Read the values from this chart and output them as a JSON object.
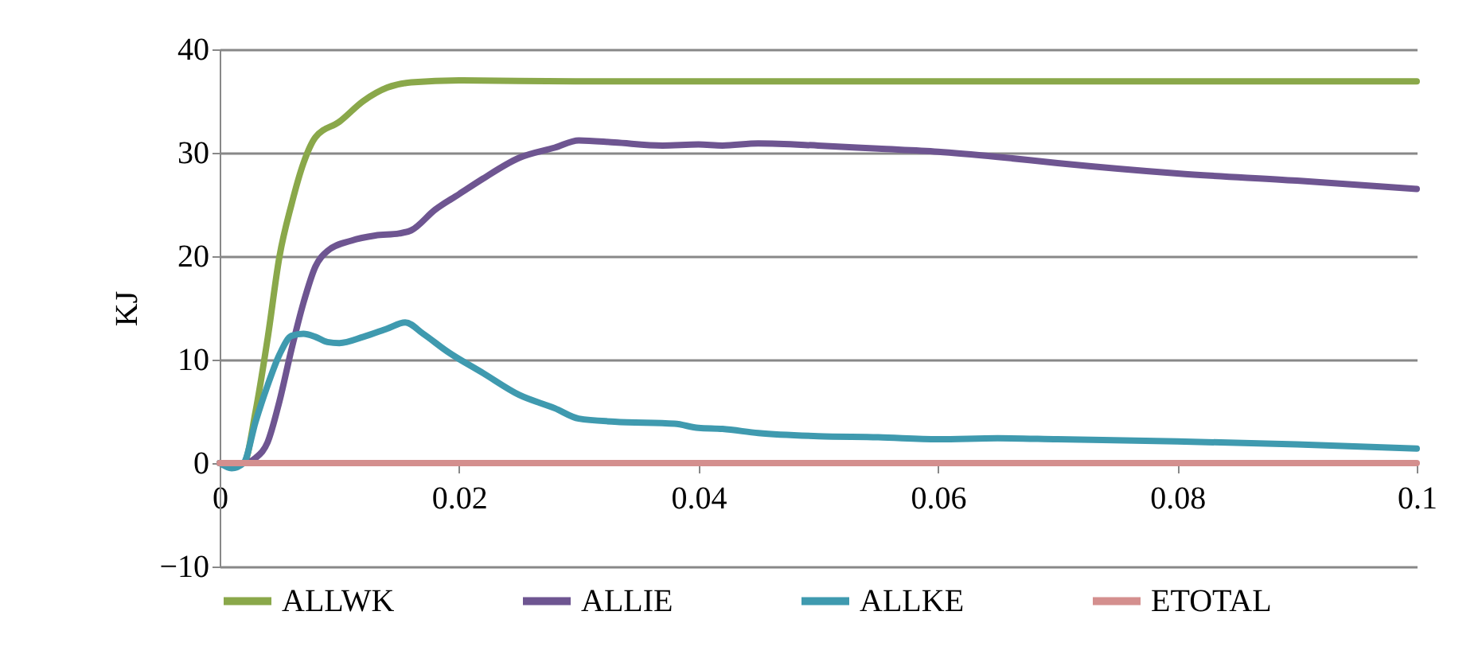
{
  "chart_data": {
    "type": "line",
    "ylabel": "KJ",
    "xlim": [
      0,
      0.1
    ],
    "xticks": [
      0,
      0.02,
      0.04,
      0.06,
      0.08,
      0.1
    ],
    "ylim": [
      -10,
      40
    ],
    "yticks": [
      -10,
      0,
      10,
      20,
      30,
      40
    ],
    "grid": "y",
    "legend": "bottom",
    "marker": "none",
    "line_style": "solid",
    "series": [
      {
        "name": "ALLWK",
        "color": "#8aa84a",
        "x": [
          0,
          0.002,
          0.003,
          0.004,
          0.005,
          0.006,
          0.007,
          0.008,
          0.01,
          0.012,
          0.014,
          0.016,
          0.02,
          0.03,
          0.05,
          0.07,
          0.1
        ],
        "values": [
          0,
          0,
          5,
          12,
          20,
          25,
          29,
          31.5,
          33,
          35,
          36.3,
          36.8,
          37,
          36.9,
          36.9,
          36.9,
          36.9
        ]
      },
      {
        "name": "ALLIE",
        "color": "#6e5591",
        "x": [
          0,
          0.002,
          0.003,
          0.004,
          0.005,
          0.006,
          0.007,
          0.008,
          0.009,
          0.011,
          0.013,
          0.015,
          0.016,
          0.018,
          0.02,
          0.022,
          0.025,
          0.028,
          0.03,
          0.033,
          0.037,
          0.04,
          0.042,
          0.045,
          0.05,
          0.055,
          0.06,
          0.065,
          0.07,
          0.08,
          0.09,
          0.1
        ],
        "values": [
          0,
          0,
          0.5,
          2,
          6,
          11,
          15.5,
          19,
          20.5,
          21.5,
          22,
          22.2,
          22.5,
          24.5,
          26,
          27.5,
          29.5,
          30.5,
          31.2,
          31,
          30.7,
          30.8,
          30.7,
          30.9,
          30.7,
          30.4,
          30.1,
          29.6,
          29,
          28,
          27.3,
          26.5
        ]
      },
      {
        "name": "ALLKE",
        "color": "#3f9aaf",
        "x": [
          0,
          0.001,
          0.002,
          0.003,
          0.004,
          0.005,
          0.006,
          0.007,
          0.008,
          0.009,
          0.01,
          0.012,
          0.014,
          0.0155,
          0.017,
          0.019,
          0.022,
          0.025,
          0.028,
          0.03,
          0.033,
          0.038,
          0.04,
          0.042,
          0.045,
          0.05,
          0.055,
          0.06,
          0.065,
          0.07,
          0.08,
          0.09,
          0.1
        ],
        "values": [
          0,
          -0.5,
          0,
          4,
          7.5,
          10.5,
          12.3,
          12.5,
          12.2,
          11.7,
          11.6,
          12.2,
          13,
          13.6,
          12.5,
          10.8,
          8.7,
          6.6,
          5.3,
          4.3,
          4,
          3.8,
          3.4,
          3.3,
          2.9,
          2.6,
          2.5,
          2.3,
          2.4,
          2.3,
          2.1,
          1.8,
          1.4
        ]
      },
      {
        "name": "ETOTAL",
        "color": "#d48f8e",
        "x": [
          0,
          0.1
        ],
        "values": [
          0,
          0
        ]
      }
    ]
  }
}
